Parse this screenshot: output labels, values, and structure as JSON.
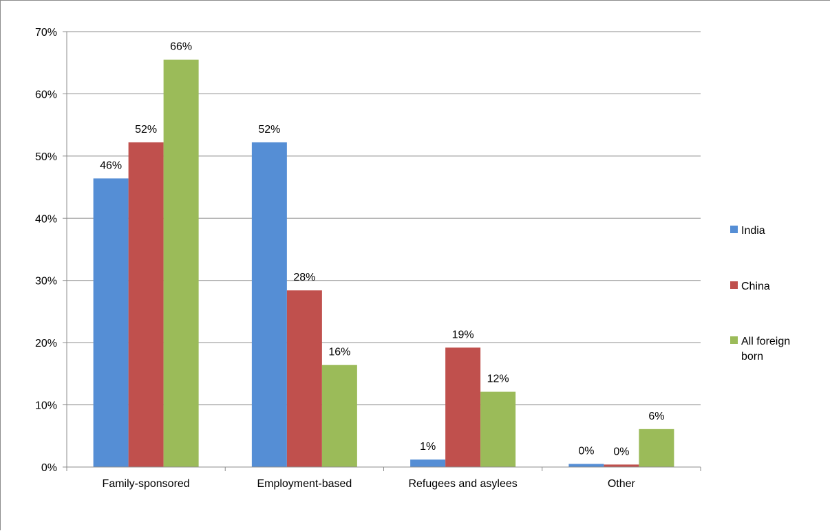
{
  "chart_data": {
    "type": "bar",
    "title": "",
    "xlabel": "",
    "ylabel": "",
    "categories": [
      "Family-sponsored",
      "Employment-based",
      "Refugees and asylees",
      "Other"
    ],
    "series": [
      {
        "name": "India",
        "color": "#558ed5",
        "values": [
          46.4,
          52.2,
          1.2,
          0.5
        ],
        "labels": [
          "46%",
          "52%",
          "1%",
          "0%"
        ]
      },
      {
        "name": "China",
        "color": "#c0504d",
        "values": [
          52.2,
          28.4,
          19.2,
          0.4
        ],
        "labels": [
          "52%",
          "28%",
          "19%",
          "0%"
        ]
      },
      {
        "name": "All foreign born",
        "legend_lines": [
          "All foreign",
          "born"
        ],
        "color": "#9bbb59",
        "values": [
          65.5,
          16.4,
          12.1,
          6.1
        ],
        "labels": [
          "66%",
          "16%",
          "12%",
          "6%"
        ]
      }
    ],
    "ylim": [
      0,
      70
    ],
    "yticks": [
      0,
      10,
      20,
      30,
      40,
      50,
      60,
      70
    ],
    "ytick_labels": [
      "0%",
      "10%",
      "20%",
      "30%",
      "40%",
      "50%",
      "60%",
      "70%"
    ],
    "grid": true,
    "legend_position": "right"
  }
}
